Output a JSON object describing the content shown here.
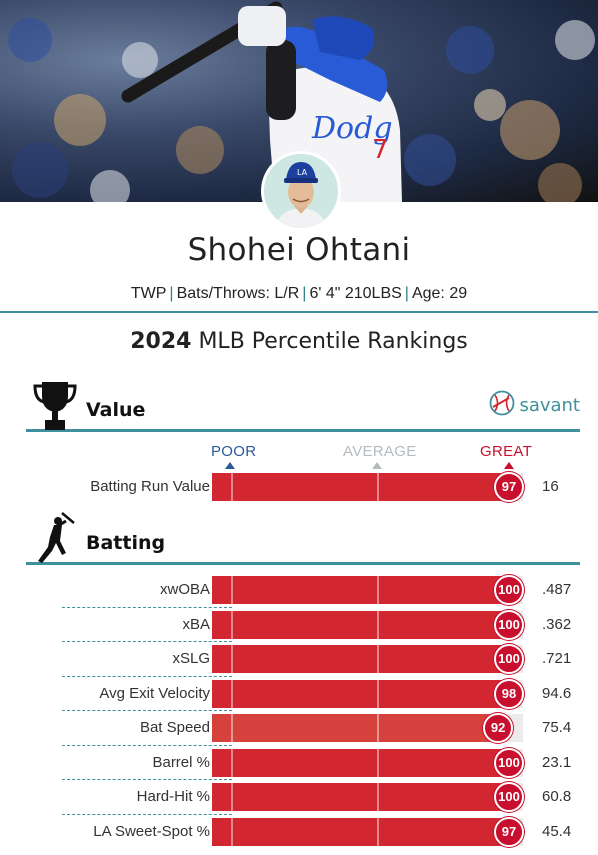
{
  "player": {
    "name": "Shohei Ohtani",
    "position": "TWP",
    "bats_throws": "Bats/Throws: L/R",
    "size": "6' 4\" 210LBS",
    "age": "Age: 29",
    "separator": "|"
  },
  "title": {
    "year": "2024",
    "rest": "MLB Percentile Rankings"
  },
  "sections": {
    "value": {
      "title": "Value",
      "icon": "trophy-icon"
    },
    "batting": {
      "title": "Batting",
      "icon": "batter-silhouette-icon"
    }
  },
  "brand": {
    "label": "savant",
    "icon": "baseball-icon"
  },
  "scale": {
    "poor": "POOR",
    "average": "AVERAGE",
    "great": "GREAT"
  },
  "colors": {
    "teal": "#3f8f9c",
    "poor": "#2b5a97",
    "average": "#b5bcc0",
    "great": "#c8102e",
    "bar": "#d22630"
  },
  "value_metrics": [
    {
      "label": "Batting Run Value",
      "percentile": "97",
      "value": "16",
      "pct": 97
    }
  ],
  "batting_metrics": [
    {
      "label": "xwOBA",
      "percentile": "100",
      "value": ".487",
      "pct": 100
    },
    {
      "label": "xBA",
      "percentile": "100",
      "value": ".362",
      "pct": 100
    },
    {
      "label": "xSLG",
      "percentile": "100",
      "value": ".721",
      "pct": 100
    },
    {
      "label": "Avg Exit Velocity",
      "percentile": "98",
      "value": "94.6",
      "pct": 98
    },
    {
      "label": "Bat Speed",
      "percentile": "92",
      "value": "75.4",
      "pct": 92
    },
    {
      "label": "Barrel %",
      "percentile": "100",
      "value": "23.1",
      "pct": 100
    },
    {
      "label": "Hard-Hit %",
      "percentile": "100",
      "value": "60.8",
      "pct": 100
    },
    {
      "label": "LA Sweet-Spot %",
      "percentile": "97",
      "value": "45.4",
      "pct": 97
    }
  ]
}
